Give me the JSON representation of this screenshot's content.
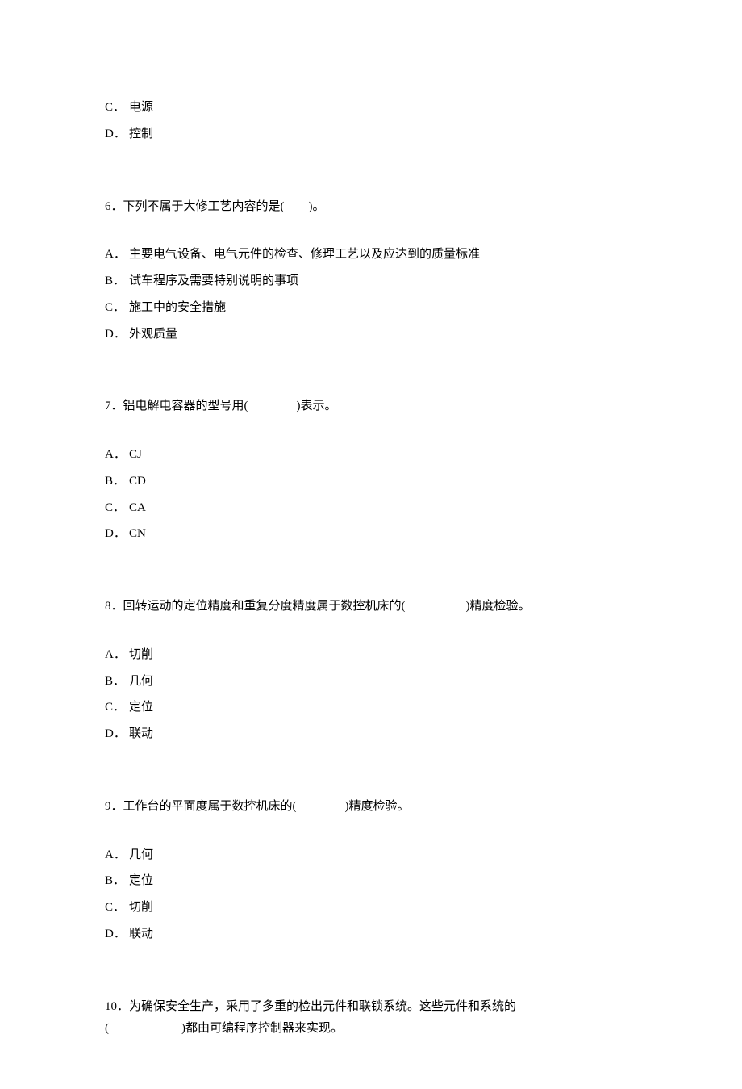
{
  "font": {
    "family": "SimSun",
    "size_pt": 11,
    "color": "#000000"
  },
  "background_color": "#ffffff",
  "top_options": {
    "c": {
      "label": "C．",
      "text": "电源"
    },
    "d": {
      "label": "D．",
      "text": "控制"
    }
  },
  "q6": {
    "stem": "6．下列不属于大修工艺内容的是(　　)。",
    "a": {
      "label": "A．",
      "text": "主要电气设备、电气元件的检查、修理工艺以及应达到的质量标准"
    },
    "b": {
      "label": "B．",
      "text": "试车程序及需要特别说明的事项"
    },
    "c": {
      "label": "C．",
      "text": "施工中的安全措施"
    },
    "d": {
      "label": "D．",
      "text": "外观质量"
    }
  },
  "q7": {
    "stem": "7．铝电解电容器的型号用(　　　　)表示。",
    "a": {
      "label": "A．",
      "text": "CJ"
    },
    "b": {
      "label": "B．",
      "text": "CD"
    },
    "c": {
      "label": "C．",
      "text": "CA"
    },
    "d": {
      "label": "D．",
      "text": "CN"
    }
  },
  "q8": {
    "stem": "8．回转运动的定位精度和重复分度精度属于数控机床的(　　　　　)精度检验。",
    "a": {
      "label": "A．",
      "text": "切削"
    },
    "b": {
      "label": "B．",
      "text": "几何"
    },
    "c": {
      "label": "C．",
      "text": "定位"
    },
    "d": {
      "label": "D．",
      "text": "联动"
    }
  },
  "q9": {
    "stem": "9．工作台的平面度属于数控机床的(　　　　)精度检验。",
    "a": {
      "label": "A．",
      "text": "几何"
    },
    "b": {
      "label": "B．",
      "text": "定位"
    },
    "c": {
      "label": "C．",
      "text": "切削"
    },
    "d": {
      "label": "D．",
      "text": "联动"
    }
  },
  "q10": {
    "stem_line1": "10．为确保安全生产，采用了多重的检出元件和联锁系统。这些元件和系统的",
    "stem_line2": "(　　　　　　)都由可编程序控制器来实现。"
  }
}
